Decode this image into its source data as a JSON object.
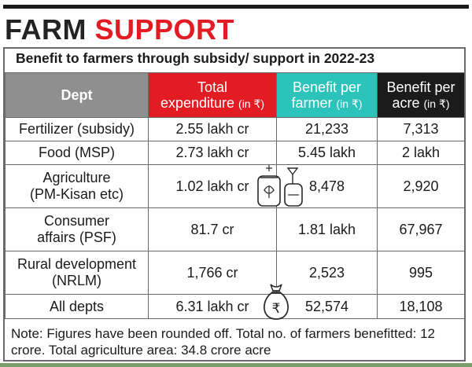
{
  "headline": {
    "word1": "FARM",
    "word2": "SUPPORT"
  },
  "subtitle": "Benefit to farmers through subsidy/ support in 2022-23",
  "table": {
    "headers": {
      "dept": "Dept",
      "expenditure": "Total",
      "expenditure_line2": "expenditure",
      "expenditure_unit": "(in ₹)",
      "per_farmer": "Benefit per",
      "per_farmer_line2": "farmer",
      "per_farmer_unit": "(in ₹)",
      "per_acre": "Benefit per",
      "per_acre_line2": "acre",
      "per_acre_unit": "(in ₹)"
    },
    "rows": [
      {
        "dept": "Fertilizer (subsidy)",
        "expenditure": "2.55 lakh cr",
        "per_farmer": "21,233",
        "per_acre": "7,313"
      },
      {
        "dept": "Food (MSP)",
        "expenditure": "2.73 lakh cr",
        "per_farmer": "5.45 lakh",
        "per_acre": "2 lakh"
      },
      {
        "dept": "Agriculture",
        "dept_line2": "(PM-Kisan etc)",
        "expenditure": "1.02 lakh cr",
        "per_farmer": "8,478",
        "per_acre": "2,920"
      },
      {
        "dept": "Consumer",
        "dept_line2": "affairs (PSF)",
        "expenditure": "81.7 cr",
        "per_farmer": "1.81 lakh",
        "per_acre": "67,967"
      },
      {
        "dept": "Rural development",
        "dept_line2": "(NRLM)",
        "expenditure": "1,766 cr",
        "per_farmer": "2,523",
        "per_acre": "995"
      },
      {
        "dept": "All depts",
        "expenditure": "6.31 lakh cr",
        "per_farmer": "52,574",
        "per_acre": "18,108"
      }
    ]
  },
  "note": "Note: Figures have been rounded off. Total no. of farmers benefitted: 12 crore. Total agriculture area: 34.8 crore acre",
  "illustrations": {
    "money_bag_symbol": "₹",
    "sack_icon": "fertilizer-sack-icon",
    "bag_icon": "money-bag-icon"
  },
  "colors": {
    "brand_red": "#e31b23",
    "teal": "#2cc3ba",
    "dept_header_gray": "#8f8f8f",
    "dark": "#1b1b1b"
  }
}
